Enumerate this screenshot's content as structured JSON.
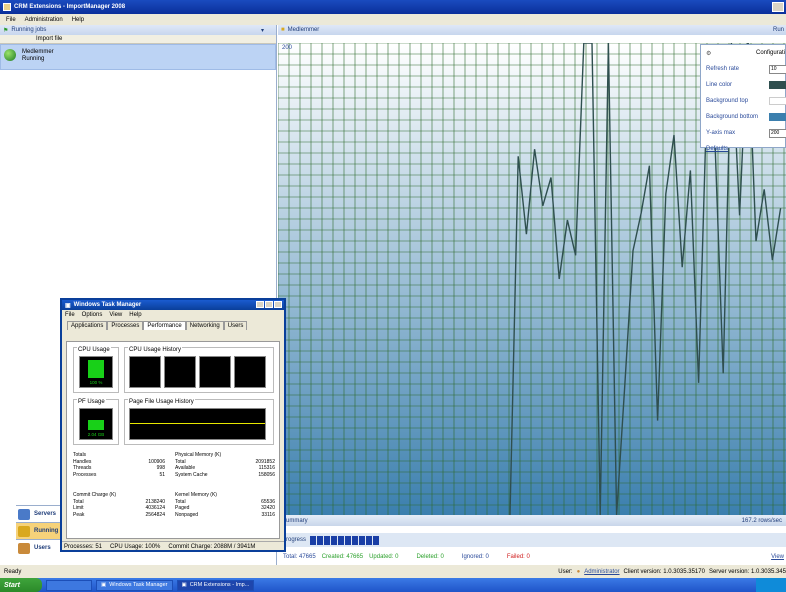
{
  "window": {
    "title": "CRM Extensions - ImportManager 2008"
  },
  "menu": [
    "File",
    "Administration",
    "Help"
  ],
  "left": {
    "header": "Running jobs",
    "column": "Import file",
    "job": {
      "name": "Medlemmer",
      "status": "Running"
    },
    "nav": [
      "Servers",
      "Running",
      "Users"
    ]
  },
  "chart_tab": {
    "title": "Medlemmer",
    "right": "Run"
  },
  "chart_data": {
    "type": "line",
    "ymax_label": "200",
    "ylim": [
      0,
      200
    ],
    "x": [
      0,
      1,
      2,
      3,
      4,
      5,
      6,
      7,
      8,
      9,
      10,
      11,
      12,
      13,
      14,
      15,
      16,
      17,
      18,
      19,
      20,
      21,
      22,
      23,
      24,
      25,
      26,
      27,
      28,
      29,
      30,
      31,
      32,
      33
    ],
    "values": [
      0,
      152,
      119,
      155,
      131,
      143,
      100,
      125,
      110,
      200,
      200,
      0,
      200,
      0,
      55,
      112,
      128,
      148,
      40,
      136,
      161,
      105,
      146,
      56,
      176,
      158,
      60,
      200,
      127,
      205,
      116,
      138,
      108,
      130
    ],
    "grid": true
  },
  "config": {
    "title": "Configurati",
    "rows": [
      {
        "label": "Refresh rate",
        "value": "10"
      },
      {
        "label": "Line color",
        "swatch": "#2f4f4f"
      },
      {
        "label": "Background top",
        "swatch": "#ffffff"
      },
      {
        "label": "Background bottom",
        "swatch": "#3b7fae"
      },
      {
        "label": "Y-axis max",
        "value": "200"
      }
    ],
    "defaults": "Defaults"
  },
  "summary": {
    "label": "Summary",
    "rate": "167.2 rows/sec"
  },
  "progress": {
    "label": "Progress",
    "blocks": 10
  },
  "totals": {
    "total": "Total: 47665",
    "created": "Created: 47665",
    "updated": "Updated: 0",
    "deleted": "Deleted: 0",
    "ignored": "Ignored: 0",
    "failed": "Failed: 0",
    "view": "View"
  },
  "status": {
    "left": "Ready",
    "user_label": "User:",
    "user": "Administrator",
    "client": "Client version: 1.0.3035.35170",
    "server": "Server version: 1.0.3035.345"
  },
  "taskbar": {
    "start": "Start",
    "items": [
      "Windows Task Manager",
      "CRM Extensions - Imp..."
    ]
  },
  "taskmgr": {
    "title": "Windows Task Manager",
    "menu": [
      "File",
      "Options",
      "View",
      "Help"
    ],
    "tabs": [
      "Applications",
      "Processes",
      "Performance",
      "Networking",
      "Users"
    ],
    "cpu_usage_label": "CPU Usage",
    "cpu_value": "100 %",
    "cpu_history_label": "CPU Usage History",
    "pf_usage_label": "PF Usage",
    "pf_value": "2.04 GB",
    "pf_history_label": "Page File Usage History",
    "totals": {
      "label": "Totals",
      "rows": [
        [
          "Handles",
          "100906"
        ],
        [
          "Threads",
          "998"
        ],
        [
          "Processes",
          "51"
        ]
      ]
    },
    "phys": {
      "label": "Physical Memory (K)",
      "rows": [
        [
          "Total",
          "2091852"
        ],
        [
          "Available",
          "115316"
        ],
        [
          "System Cache",
          "158056"
        ]
      ]
    },
    "commit": {
      "label": "Commit Charge (K)",
      "rows": [
        [
          "Total",
          "2138240"
        ],
        [
          "Limit",
          "4036124"
        ],
        [
          "Peak",
          "2564824"
        ]
      ]
    },
    "kernel": {
      "label": "Kernel Memory (K)",
      "rows": [
        [
          "Total",
          "65536"
        ],
        [
          "Paged",
          "32420"
        ],
        [
          "Nonpaged",
          "33116"
        ]
      ]
    },
    "status": [
      "Processes: 51",
      "CPU Usage: 100%",
      "Commit Charge: 2088M / 3941M"
    ]
  }
}
